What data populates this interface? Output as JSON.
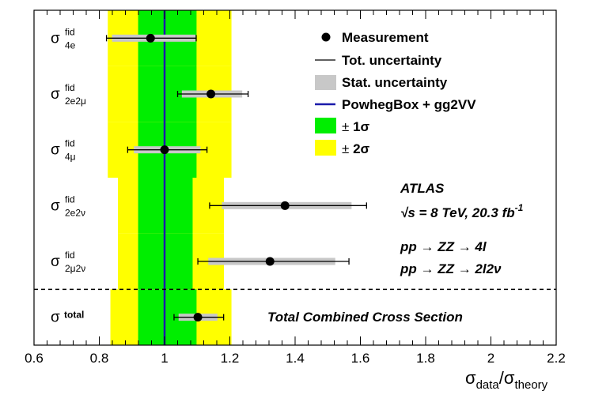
{
  "chart_data": {
    "type": "scatter",
    "title": "",
    "xlabel": "σ_data/σ_theory",
    "xlabel_parts": {
      "sym": "σ",
      "num_sub": "data",
      "den_sub": "theory"
    },
    "xlim": [
      0.6,
      2.2
    ],
    "xticks": [
      0.6,
      0.8,
      1,
      1.2,
      1.4,
      1.6,
      1.8,
      2,
      2.2
    ],
    "xtick_labels": [
      "0.6",
      "0.8",
      "1",
      "1.2",
      "1.4",
      "1.6",
      "1.8",
      "2",
      "2.2"
    ],
    "theory_line": 1.0,
    "separator_after_row": 4,
    "rows": [
      {
        "label_sym": "σ",
        "label_sup": "fid",
        "label_sub": "4e",
        "value": 0.957,
        "tot_lo": 0.822,
        "tot_hi": 1.097,
        "stat_lo": 0.839,
        "stat_hi": 1.095,
        "band1": [
          0.919,
          1.098
        ],
        "band2": [
          0.826,
          1.205
        ]
      },
      {
        "label_sym": "σ",
        "label_sup": "fid",
        "label_sub": "2e2μ",
        "value": 1.142,
        "tot_lo": 1.04,
        "tot_hi": 1.256,
        "stat_lo": 1.053,
        "stat_hi": 1.238,
        "band1": [
          0.919,
          1.098
        ],
        "band2": [
          0.826,
          1.205
        ]
      },
      {
        "label_sym": "σ",
        "label_sup": "fid",
        "label_sub": "4μ",
        "value": 1.0,
        "tot_lo": 0.887,
        "tot_hi": 1.13,
        "stat_lo": 0.906,
        "stat_hi": 1.11,
        "band1": [
          0.919,
          1.098
        ],
        "band2": [
          0.826,
          1.205
        ]
      },
      {
        "label_sym": "σ",
        "label_sup": "fid",
        "label_sub": "2e2ν",
        "value": 1.369,
        "tot_lo": 1.138,
        "tot_hi": 1.619,
        "stat_lo": 1.176,
        "stat_hi": 1.573,
        "band1": [
          0.919,
          1.086
        ],
        "band2": [
          0.857,
          1.182
        ]
      },
      {
        "label_sym": "σ",
        "label_sup": "fid",
        "label_sub": "2μ2ν",
        "value": 1.323,
        "tot_lo": 1.102,
        "tot_hi": 1.565,
        "stat_lo": 1.134,
        "stat_hi": 1.523,
        "band1": [
          0.919,
          1.086
        ],
        "band2": [
          0.857,
          1.182
        ]
      },
      {
        "label_sym": "σ",
        "label_sup": "total",
        "label_sub": "",
        "value": 1.102,
        "tot_lo": 1.029,
        "tot_hi": 1.181,
        "stat_lo": 1.043,
        "stat_hi": 1.162,
        "band1": [
          0.919,
          1.098
        ],
        "band2": [
          0.834,
          1.205
        ]
      }
    ],
    "legend": {
      "placement": "top-right",
      "entries": [
        {
          "kind": "marker",
          "label": "Measurement"
        },
        {
          "kind": "line",
          "label": "Tot. uncertainty"
        },
        {
          "kind": "gray-box",
          "label": "Stat. uncertainty"
        },
        {
          "kind": "blue-line",
          "label": "PowhegBox + gg2VV"
        },
        {
          "kind": "green-box",
          "label": "1σ",
          "prefix": "±"
        },
        {
          "kind": "yellow-box",
          "label": "2σ",
          "prefix": "±"
        }
      ]
    },
    "annotations": {
      "experiment": "ATLAS",
      "energy": "√s = 8 TeV, 20.3 fb",
      "energy_sup": "-1",
      "process_1": "pp → ZZ → 4l",
      "process_2": "pp → ZZ → 2l2ν",
      "combined": "Total Combined Cross Section"
    },
    "colors": {
      "band1": "#00ee00",
      "band2": "#ffff00",
      "stat": "#c8c8c8",
      "theory": "#1a1aaa",
      "marker": "#000000"
    }
  }
}
